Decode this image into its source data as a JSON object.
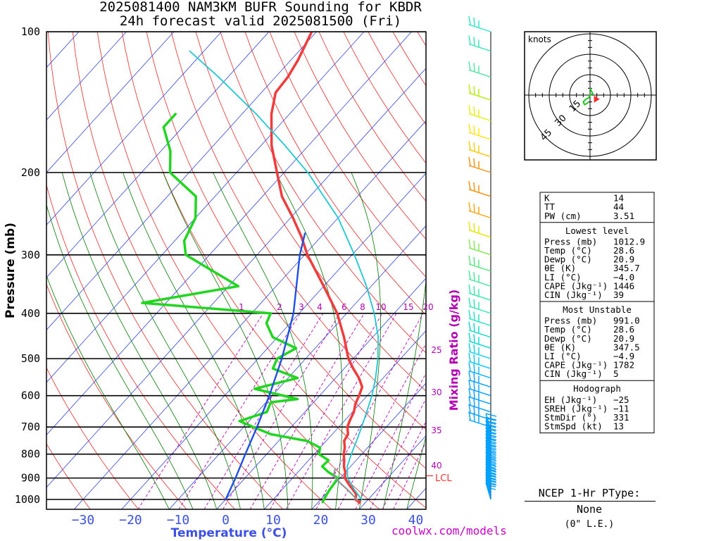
{
  "title": {
    "line1": "2025081400 NAM3KM BUFR Sounding for KBDR",
    "line2": "24h forecast valid 2025081500 (Fri)"
  },
  "credit": "coolwx.com/models",
  "chart_data": {
    "type": "skew-t log-p",
    "xlabel": "Temperature (°C)",
    "ylabel": "Pressure (mb)",
    "x_ticks": [
      -30,
      -20,
      -10,
      0,
      10,
      20,
      30,
      40
    ],
    "x_tick_labels": [
      "−30",
      "−20",
      "−10",
      "0",
      "10",
      "20",
      "30",
      "40"
    ],
    "y_ticks": [
      100,
      200,
      300,
      400,
      500,
      600,
      700,
      800,
      900,
      1000
    ],
    "xlim": [
      -37,
      43
    ],
    "ylim": [
      1050,
      100
    ],
    "mixing_ratio_label": "Mixing Ratio (g/kg)",
    "mixing_ratio_ticks": [
      "1",
      "2",
      "3",
      "4",
      "6",
      "8",
      "10",
      "15",
      "20",
      "25",
      "30",
      "35",
      "40"
    ],
    "lcl_label": "LCL",
    "lcl_pressure": 890,
    "series": [
      {
        "name": "",
        "color": "#f03c3c",
        "points": [
          [
            1012.9,
            28.6
          ],
          [
            1000,
            27.3
          ],
          [
            975,
            26.5
          ],
          [
            950,
            24.7
          ],
          [
            925,
            22.8
          ],
          [
            900,
            21.0
          ],
          [
            875,
            20.0
          ],
          [
            850,
            18.6
          ],
          [
            825,
            17.5
          ],
          [
            800,
            16.2
          ],
          [
            775,
            15.2
          ],
          [
            750,
            13.8
          ],
          [
            725,
            13.3
          ],
          [
            700,
            11.8
          ],
          [
            675,
            11.0
          ],
          [
            650,
            10.3
          ],
          [
            625,
            9.1
          ],
          [
            600,
            8.3
          ],
          [
            575,
            7.3
          ],
          [
            550,
            4.9
          ],
          [
            525,
            1.9
          ],
          [
            500,
            -1.0
          ],
          [
            450,
            -6.0
          ],
          [
            400,
            -12.0
          ],
          [
            350,
            -20.0
          ],
          [
            300,
            -29.4
          ],
          [
            275,
            -34.0
          ],
          [
            250,
            -39.5
          ],
          [
            225,
            -45.9
          ],
          [
            200,
            -51.5
          ],
          [
            175,
            -57.8
          ],
          [
            150,
            -63.8
          ],
          [
            135,
            -67.0
          ],
          [
            125,
            -67.4
          ],
          [
            115,
            -68.5
          ],
          [
            100,
            -71.0
          ]
        ]
      },
      {
        "name": "",
        "color": "#21d621",
        "points": [
          [
            1012.9,
            20.9
          ],
          [
            1000,
            20.7
          ],
          [
            975,
            20.3
          ],
          [
            950,
            20.0
          ],
          [
            925,
            19.8
          ],
          [
            900,
            19.5
          ],
          [
            875,
            16.5
          ],
          [
            850,
            14.0
          ],
          [
            825,
            14.2
          ],
          [
            800,
            11.0
          ],
          [
            775,
            10.0
          ],
          [
            750,
            6.0
          ],
          [
            725,
            -3.0
          ],
          [
            700,
            -8.0
          ],
          [
            680,
            -12.0
          ],
          [
            650,
            -8.0
          ],
          [
            620,
            -9.0
          ],
          [
            610,
            -4.0
          ],
          [
            580,
            -15.0
          ],
          [
            550,
            -8.0
          ],
          [
            525,
            -15.0
          ],
          [
            500,
            -16.0
          ],
          [
            475,
            -14.0
          ],
          [
            450,
            -21.0
          ],
          [
            420,
            -25.0
          ],
          [
            400,
            -26.0
          ],
          [
            380,
            -55.0
          ],
          [
            350,
            -38.0
          ],
          [
            300,
            -55.0
          ],
          [
            280,
            -58.0
          ],
          [
            250,
            -60.0
          ],
          [
            225,
            -64.0
          ],
          [
            200,
            -74.0
          ],
          [
            180,
            -78.0
          ],
          [
            160,
            -84.0
          ],
          [
            150,
            -84.0
          ]
        ]
      },
      {
        "name": "",
        "color": "#1ec8d2",
        "points": [
          [
            1000,
            28.6
          ],
          [
            950,
            25.0
          ],
          [
            900,
            21.6
          ],
          [
            850,
            19.3
          ],
          [
            800,
            17.8
          ],
          [
            750,
            16.4
          ],
          [
            700,
            14.8
          ],
          [
            650,
            13.0
          ],
          [
            600,
            11.0
          ],
          [
            550,
            8.4
          ],
          [
            500,
            5.2
          ],
          [
            450,
            1.2
          ],
          [
            400,
            -4.2
          ],
          [
            350,
            -11.0
          ],
          [
            300,
            -19.5
          ],
          [
            250,
            -30.0
          ],
          [
            200,
            -45.0
          ],
          [
            175,
            -55.0
          ],
          [
            150,
            -67.0
          ],
          [
            125,
            -82.0
          ],
          [
            110,
            -93.0
          ]
        ]
      },
      {
        "name": "",
        "color": "#969696",
        "points": [
          [
            1012.9,
            28.6
          ],
          [
            975,
            25.6
          ],
          [
            950,
            23.5
          ],
          [
            925,
            21.2
          ],
          [
            890,
            18.2
          ],
          [
            860,
            17.2
          ]
        ]
      },
      {
        "name": "",
        "color": "#1e50e6",
        "points": [
          [
            1000,
            0.0
          ],
          [
            900,
            -2.0
          ],
          [
            800,
            -4.5
          ],
          [
            700,
            -7.2
          ],
          [
            600,
            -10.6
          ],
          [
            500,
            -15.0
          ],
          [
            400,
            -21.2
          ],
          [
            300,
            -31.0
          ],
          [
            270,
            -34.0
          ]
        ]
      }
    ],
    "wind_barbs": [
      {
        "p": 1000,
        "color": "#00a0ff"
      },
      {
        "p": 987,
        "color": "#00a0ff"
      },
      {
        "p": 975,
        "color": "#00a0ff"
      },
      {
        "p": 962,
        "color": "#00a0ff"
      },
      {
        "p": 950,
        "color": "#00a0ff"
      },
      {
        "p": 937,
        "color": "#00a0ff"
      },
      {
        "p": 925,
        "color": "#00a0ff"
      },
      {
        "p": 912,
        "color": "#00a0ff"
      },
      {
        "p": 900,
        "color": "#00a0ff"
      },
      {
        "p": 887,
        "color": "#00a0ff"
      },
      {
        "p": 875,
        "color": "#00a0ff"
      },
      {
        "p": 862,
        "color": "#00a0ff"
      },
      {
        "p": 850,
        "color": "#00a0ff"
      },
      {
        "p": 837,
        "color": "#00a0ff"
      },
      {
        "p": 825,
        "color": "#00a0ff"
      },
      {
        "p": 812,
        "color": "#00a0ff"
      },
      {
        "p": 800,
        "color": "#00a0ff"
      },
      {
        "p": 787,
        "color": "#00a0ff"
      },
      {
        "p": 775,
        "color": "#00a0ff"
      },
      {
        "p": 762,
        "color": "#00a0ff"
      },
      {
        "p": 750,
        "color": "#00a0ff"
      },
      {
        "p": 737,
        "color": "#00a0ff"
      },
      {
        "p": 725,
        "color": "#00a0ff"
      },
      {
        "p": 712,
        "color": "#00a0ff"
      },
      {
        "p": 700,
        "color": "#00a0ff"
      },
      {
        "p": 675,
        "color": "#00a0ff"
      },
      {
        "p": 650,
        "color": "#00a0ff"
      },
      {
        "p": 625,
        "color": "#00a0ff"
      },
      {
        "p": 600,
        "color": "#00a0ff"
      },
      {
        "p": 575,
        "color": "#00a0ff"
      },
      {
        "p": 550,
        "color": "#00b4ff"
      },
      {
        "p": 525,
        "color": "#00c8ff"
      },
      {
        "p": 500,
        "color": "#00d2e6"
      },
      {
        "p": 475,
        "color": "#00d7d2"
      },
      {
        "p": 450,
        "color": "#00dcc8"
      },
      {
        "p": 425,
        "color": "#14e6c8"
      },
      {
        "p": 400,
        "color": "#28e6b4"
      },
      {
        "p": 375,
        "color": "#32e6aa"
      },
      {
        "p": 350,
        "color": "#3ce696"
      },
      {
        "p": 325,
        "color": "#50e67a"
      },
      {
        "p": 300,
        "color": "#82e650"
      },
      {
        "p": 275,
        "color": "#e6e600"
      },
      {
        "p": 250,
        "color": "#ffa000"
      },
      {
        "p": 225,
        "color": "#ff8c00"
      },
      {
        "p": 200,
        "color": "#ff8c00"
      },
      {
        "p": 185,
        "color": "#ffc800"
      },
      {
        "p": 170,
        "color": "#ffe600"
      },
      {
        "p": 155,
        "color": "#e6f000"
      },
      {
        "p": 140,
        "color": "#b4f000"
      },
      {
        "p": 125,
        "color": "#50e6a0"
      },
      {
        "p": 110,
        "color": "#32e6b4"
      },
      {
        "p": 100,
        "color": "#28e6c8"
      }
    ],
    "hodograph": {
      "units_label": "knots",
      "ring_labels": [
        "15",
        "30",
        "45"
      ],
      "trace": [
        [
          -1,
          -5
        ],
        [
          -2,
          -6
        ],
        [
          -4,
          -7
        ],
        [
          -5,
          -5
        ],
        [
          -3,
          -3
        ],
        [
          -1,
          -2
        ],
        [
          0,
          0
        ],
        [
          2,
          1
        ],
        [
          1,
          3
        ],
        [
          0,
          5
        ]
      ],
      "storm_motion": [
        5,
        -3
      ]
    }
  },
  "indices": {
    "general": [
      {
        "label": "K",
        "value": "14"
      },
      {
        "label": "TT",
        "value": "44"
      },
      {
        "label": "PW (cm)",
        "value": "3.51"
      }
    ],
    "lowest_level": {
      "heading": "Lowest level",
      "rows": [
        {
          "label": "Press (mb)",
          "value": "1012.9"
        },
        {
          "label": "Temp (°C)",
          "value": "28.6"
        },
        {
          "label": "Dewp (°C)",
          "value": "20.9"
        },
        {
          "label": "θE (K)",
          "value": "345.7"
        },
        {
          "label": "LI (°C)",
          "value": "−4.0"
        },
        {
          "label": "CAPE (Jkg⁻¹)",
          "value": "1446"
        },
        {
          "label": "CIN (Jkg⁻¹)",
          "value": "39"
        }
      ]
    },
    "most_unstable": {
      "heading": "Most Unstable",
      "rows": [
        {
          "label": "Press (mb)",
          "value": "991.0"
        },
        {
          "label": "Temp (°C)",
          "value": "28.6"
        },
        {
          "label": "Dewp (°C)",
          "value": "20.9"
        },
        {
          "label": "θE (K)",
          "value": "347.5"
        },
        {
          "label": "LI (°C)",
          "value": "−4.9"
        },
        {
          "label": "CAPE (Jkg⁻¹)",
          "value": "1782"
        },
        {
          "label": "CIN (Jkg⁻¹)",
          "value": "5"
        }
      ]
    },
    "hodograph": {
      "heading": "Hodograph",
      "rows": [
        {
          "label": "EH (Jkg⁻¹)",
          "value": "−25"
        },
        {
          "label": "SREH (Jkg⁻¹)",
          "value": "−11"
        },
        {
          "label": "StmDir (°)",
          "value": "331"
        },
        {
          "label": "StmSpd (kt)",
          "value": "13"
        }
      ]
    }
  },
  "ptype": {
    "heading": "NCEP 1-Hr PType:",
    "value": "None",
    "note": "(0\" L.E.)"
  }
}
